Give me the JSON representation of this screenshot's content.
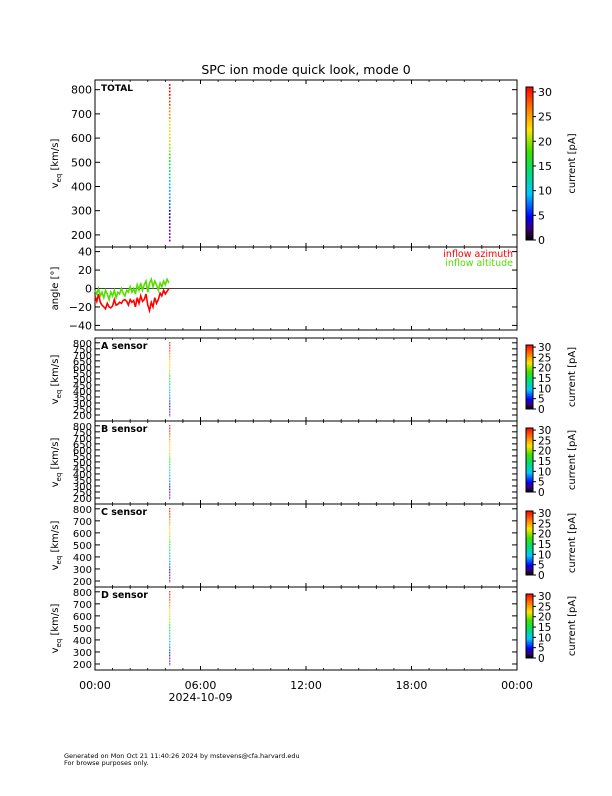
{
  "chart_data": {
    "type": "multi-panel spectrogram",
    "title": "SPC ion mode quick look, mode 0",
    "x_axis": {
      "tick_labels": [
        "00:00",
        "06:00",
        "12:00",
        "18:00",
        "00:00"
      ],
      "range_hours": [
        0,
        24
      ],
      "date_label": "2024-10-09"
    },
    "data_end_hours": 4.25,
    "colorbar": {
      "label": "current [pA]",
      "range": [
        0,
        31
      ],
      "ticks_large": [
        0,
        5,
        10,
        15,
        20,
        25,
        30
      ],
      "ticks_small": [
        0,
        5,
        10,
        15,
        20,
        25,
        30
      ],
      "tick_labels_large": [
        "0",
        "5",
        "10",
        "15",
        "20",
        "25",
        "30"
      ],
      "tick_labels_small": [
        "0",
        "5",
        "10",
        "15",
        "20",
        "25",
        "30"
      ]
    },
    "panels": [
      {
        "label": "TOTAL",
        "ylabel": "v",
        "ylabel_sub": "eq",
        "yunits": " [km/s]",
        "ylim": [
          150,
          840
        ],
        "yticks": [
          200,
          300,
          400,
          500,
          600,
          700,
          800
        ],
        "ytick_labels": [
          "200",
          "300",
          "400",
          "500",
          "600",
          "700",
          "800"
        ],
        "spectrum_time_hours": 4.25
      },
      {
        "label": "A sensor",
        "ylabel": "v",
        "ylabel_sub": "eq",
        "yunits": " [km/s]",
        "ylim": [
          150,
          840
        ],
        "yticks": [
          200,
          250,
          300,
          350,
          400,
          450,
          500,
          550,
          600,
          650,
          700,
          750,
          800
        ],
        "ytick_labels": [
          "200",
          "250",
          "300",
          "350",
          "400",
          "450",
          "500",
          "550",
          "600",
          "650",
          "700",
          "750",
          "800"
        ],
        "spectrum_time_hours": 4.25
      },
      {
        "label": "B sensor",
        "ylabel": "v",
        "ylabel_sub": "eq",
        "yunits": " [km/s]",
        "ylim": [
          150,
          840
        ],
        "yticks": [
          200,
          250,
          300,
          350,
          400,
          450,
          500,
          550,
          600,
          650,
          700,
          750,
          800
        ],
        "ytick_labels": [
          "200",
          "250",
          "300",
          "350",
          "400",
          "450",
          "500",
          "550",
          "600",
          "650",
          "700",
          "750",
          "800"
        ],
        "spectrum_time_hours": 4.25
      },
      {
        "label": "C sensor",
        "ylabel": "v",
        "ylabel_sub": "eq",
        "yunits": " [km/s]",
        "ylim": [
          150,
          840
        ],
        "yticks": [
          200,
          300,
          400,
          500,
          600,
          700,
          800
        ],
        "ytick_labels": [
          "200",
          "300",
          "400",
          "500",
          "600",
          "700",
          "800"
        ],
        "spectrum_time_hours": 4.25
      },
      {
        "label": "D sensor",
        "ylabel": "v",
        "ylabel_sub": "eq",
        "yunits": " [km/s]",
        "ylim": [
          150,
          840
        ],
        "yticks": [
          200,
          300,
          400,
          500,
          600,
          700,
          800
        ],
        "ytick_labels": [
          "200",
          "300",
          "400",
          "500",
          "600",
          "700",
          "800"
        ],
        "spectrum_time_hours": 4.25
      }
    ],
    "angle_panel": {
      "ylabel": "angle [°]",
      "ylim": [
        -45,
        45
      ],
      "yticks": [
        -40,
        -20,
        0,
        20,
        40
      ],
      "ytick_labels": [
        "−40",
        "−20",
        "0",
        "20",
        "40"
      ],
      "zero_line": true,
      "series": [
        {
          "name": "inflow azimuth",
          "color": "#ff0000",
          "x_hours": [
            0.0,
            0.1,
            0.2,
            0.3,
            0.4,
            0.5,
            0.6,
            0.7,
            0.8,
            0.9,
            1.0,
            1.1,
            1.2,
            1.3,
            1.4,
            1.5,
            1.6,
            1.7,
            1.8,
            1.9,
            2.0,
            2.1,
            2.2,
            2.3,
            2.4,
            2.5,
            2.6,
            2.7,
            2.8,
            2.9,
            3.0,
            3.1,
            3.2,
            3.3,
            3.4,
            3.5,
            3.6,
            3.7,
            3.8,
            3.9,
            4.0,
            4.1,
            4.2
          ],
          "y": [
            -8,
            -14,
            -6,
            -15,
            -18,
            -20,
            -22,
            -16,
            -20,
            -21,
            -19,
            -12,
            -18,
            -17,
            -15,
            -16,
            -13,
            -12,
            -14,
            -18,
            -12,
            -15,
            -13,
            -20,
            -10,
            -16,
            -8,
            -14,
            -12,
            -6,
            -18,
            -24,
            -15,
            -20,
            -10,
            -16,
            -12,
            -5,
            -8,
            -2,
            -6,
            -3,
            0
          ]
        },
        {
          "name": "inflow altitude",
          "color": "#55dd00",
          "x_hours": [
            0.0,
            0.1,
            0.2,
            0.3,
            0.4,
            0.5,
            0.6,
            0.7,
            0.8,
            0.9,
            1.0,
            1.1,
            1.2,
            1.3,
            1.4,
            1.5,
            1.6,
            1.7,
            1.8,
            1.9,
            2.0,
            2.1,
            2.2,
            2.3,
            2.4,
            2.5,
            2.6,
            2.7,
            2.8,
            2.9,
            3.0,
            3.1,
            3.2,
            3.3,
            3.4,
            3.5,
            3.6,
            3.7,
            3.8,
            3.9,
            4.0,
            4.1,
            4.2
          ],
          "y": [
            -2,
            -6,
            0,
            -8,
            -4,
            -10,
            -2,
            -6,
            -12,
            -4,
            -8,
            -2,
            -10,
            -4,
            -6,
            0,
            -5,
            -8,
            -2,
            -4,
            2,
            -4,
            0,
            -6,
            4,
            -2,
            6,
            -2,
            4,
            8,
            -4,
            6,
            10,
            2,
            8,
            4,
            -2,
            6,
            2,
            8,
            4,
            10,
            6
          ]
        }
      ]
    },
    "footer": {
      "line1": "Generated on Mon Oct 21 11:40:26 2024 by mstevens@cfa.harvard.edu",
      "line2": "For browse purposes only."
    }
  }
}
